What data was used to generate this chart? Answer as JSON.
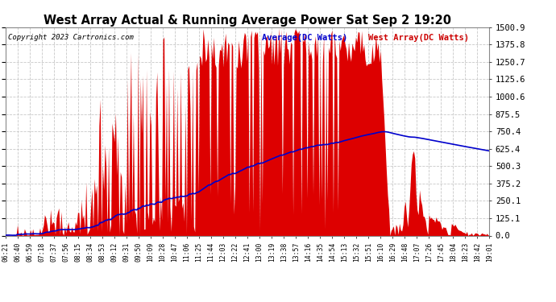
{
  "title": "West Array Actual & Running Average Power Sat Sep 2 19:20",
  "copyright": "Copyright 2023 Cartronics.com",
  "legend_avg": "Average(DC Watts)",
  "legend_west": "West Array(DC Watts)",
  "ylabel_right_ticks": [
    0.0,
    125.1,
    250.1,
    375.2,
    500.3,
    625.4,
    750.4,
    875.5,
    1000.6,
    1125.6,
    1250.7,
    1375.8,
    1500.9
  ],
  "ylim": [
    0,
    1500.9
  ],
  "background_color": "#ffffff",
  "grid_color": "#c8c8c8",
  "fill_color": "#dd0000",
  "avg_line_color": "#0000cc",
  "title_color": "#000000",
  "copyright_color": "#000000",
  "legend_avg_color": "#0000cc",
  "legend_west_color": "#cc0000",
  "x_tick_labels": [
    "06:21",
    "06:40",
    "06:59",
    "07:18",
    "07:37",
    "07:56",
    "08:15",
    "08:34",
    "08:53",
    "09:12",
    "09:31",
    "09:50",
    "10:09",
    "10:28",
    "10:47",
    "11:06",
    "11:25",
    "11:44",
    "12:03",
    "12:22",
    "12:41",
    "13:00",
    "13:19",
    "13:38",
    "13:57",
    "14:16",
    "14:35",
    "14:54",
    "15:13",
    "15:32",
    "15:51",
    "16:10",
    "16:29",
    "16:48",
    "17:07",
    "17:26",
    "17:45",
    "18:04",
    "18:23",
    "18:42",
    "19:01"
  ]
}
